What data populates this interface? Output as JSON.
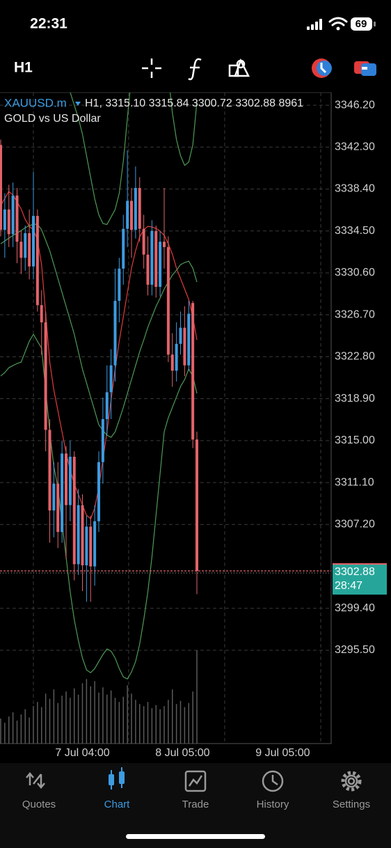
{
  "status_bar": {
    "time": "22:31",
    "battery": "69"
  },
  "toolbar": {
    "timeframe": "H1"
  },
  "chart_data": {
    "type": "candlestick",
    "symbol": "XAUUSD.m",
    "info": "H1, 3315.10 3315.84 3300.72 3302.88 8961",
    "description": "GOLD vs US Dollar",
    "up_color": "#3d9be0",
    "down_color": "#e2636a",
    "volume_color": "#5a5a5a",
    "grid": true,
    "xlim": [
      -0.17,
      80.85
    ],
    "ylim": [
      3286.82,
      3347.37
    ],
    "yticks": [
      {
        "value": 3346.2,
        "label": "3346.20"
      },
      {
        "value": 3342.3,
        "label": "3342.30"
      },
      {
        "value": 3338.4,
        "label": "3338.40"
      },
      {
        "value": 3334.5,
        "label": "3334.50"
      },
      {
        "value": 3330.6,
        "label": "3330.60"
      },
      {
        "value": 3326.7,
        "label": "3326.70"
      },
      {
        "value": 3322.8,
        "label": "3322.80"
      },
      {
        "value": 3318.9,
        "label": "3318.90"
      },
      {
        "value": 3315.0,
        "label": "3315.00"
      },
      {
        "value": 3311.1,
        "label": "3311.10"
      },
      {
        "value": 3307.2,
        "label": "3307.20"
      },
      {
        "value": 3299.4,
        "label": "3299.40"
      },
      {
        "value": 3295.5,
        "label": "3295.50"
      }
    ],
    "xticks": [
      {
        "value": 20,
        "label": "7 Jul 04:00"
      },
      {
        "value": 44.5,
        "label": "8 Jul 05:00"
      },
      {
        "value": 69,
        "label": "9 Jul 05:00"
      }
    ],
    "xgrid": [
      8,
      31.3,
      54.8,
      78.3
    ],
    "open": [
      3342.5,
      3334.6,
      3336.5,
      3334.2,
      3337.8,
      3333.5,
      3332,
      3334.3,
      3331.2,
      3335.9,
      3327.6,
      3326,
      3316,
      3308.5,
      3311,
      3306.5,
      3313.8,
      3309,
      3313.5,
      3303.5,
      3309,
      3303.4,
      3307,
      3303.3,
      3307.5,
      3313,
      3317,
      3319.5,
      3322,
      3328,
      3331,
      3334.7,
      3337.3,
      3334.6,
      3338.5,
      3334.7,
      3332.3,
      3329.5,
      3334.5,
      3329.3,
      3333.5,
      3333,
      3323,
      3321.5,
      3324,
      3325.5,
      3322,
      3327.8,
      3315.1
    ],
    "high": [
      3343,
      3338,
      3338.8,
      3339,
      3338.5,
      3334.5,
      3335,
      3336.5,
      3340,
      3336.5,
      3329,
      3327,
      3317,
      3313,
      3313,
      3315,
      3314.5,
      3315,
      3314,
      3310.5,
      3310,
      3308,
      3308,
      3309,
      3314,
      3319,
      3322,
      3323.5,
      3331,
      3332,
      3336,
      3342,
      3338.5,
      3340.5,
      3339.5,
      3336,
      3334,
      3335.5,
      3335,
      3334.5,
      3338.5,
      3334,
      3325,
      3326,
      3327,
      3327.5,
      3328,
      3328,
      3315.84
    ],
    "low": [
      3334,
      3332,
      3333,
      3333,
      3331.5,
      3330.5,
      3330.8,
      3330,
      3330,
      3327,
      3323,
      3314,
      3305.5,
      3306,
      3305,
      3305.5,
      3304,
      3307.5,
      3302,
      3302.5,
      3301,
      3300,
      3300,
      3301.5,
      3306.5,
      3311,
      3315.5,
      3317,
      3320.5,
      3326,
      3329.5,
      3333,
      3332,
      3333.8,
      3333.5,
      3331,
      3328.5,
      3328.5,
      3328.3,
      3328.4,
      3331,
      3322.3,
      3320,
      3320.5,
      3323,
      3321,
      3321.5,
      3314.3,
      3300.72
    ],
    "close": [
      3334.6,
      3336.5,
      3334.2,
      3337.8,
      3333.5,
      3332,
      3334.3,
      3331.2,
      3335.9,
      3327.6,
      3326,
      3316,
      3308.5,
      3311,
      3306.5,
      3313.8,
      3309,
      3313.5,
      3303.5,
      3309,
      3303.4,
      3307,
      3303.3,
      3307.5,
      3313,
      3317,
      3319.5,
      3322,
      3328,
      3331,
      3334.7,
      3337.3,
      3334.6,
      3338.5,
      3334.7,
      3332.3,
      3329.5,
      3334.5,
      3329.3,
      3333.5,
      3333,
      3323,
      3321.5,
      3324,
      3325.5,
      3322,
      3326.8,
      3315.1,
      3302.88
    ],
    "volume": [
      2400,
      2000,
      2600,
      3000,
      2200,
      2800,
      3300,
      2500,
      3600,
      4000,
      3500,
      4800,
      4300,
      5200,
      3900,
      4600,
      5000,
      4400,
      5300,
      4700,
      5800,
      6200,
      5500,
      6000,
      4900,
      5400,
      4700,
      5100,
      4400,
      4000,
      4500,
      5600,
      4800,
      4200,
      3800,
      3600,
      4000,
      3400,
      3700,
      3300,
      3600,
      4200,
      5200,
      3800,
      4100,
      3500,
      3900,
      5000,
      8961
    ],
    "indicators": [
      {
        "color": "#e23b3b",
        "values": [
          3336.87,
          3337.52,
          3338.17,
          3337.85,
          3337.2,
          3336.55,
          3335.58,
          3334.93,
          3334.61,
          3333.64,
          3331.37,
          3326.83,
          3322.3,
          3319.71,
          3317.77,
          3315.82,
          3313.88,
          3312.26,
          3310.97,
          3310,
          3309.02,
          3308.05,
          3307.73,
          3308.7,
          3310.64,
          3313.23,
          3315.82,
          3318.74,
          3321.65,
          3324.24,
          3326.51,
          3328.78,
          3331.04,
          3332.66,
          3333.96,
          3334.61,
          3334.93,
          3334.87,
          3334.74,
          3334.48,
          3334.09,
          3333.31,
          3332.34,
          3331.04,
          3330.07,
          3329.1,
          3328.13,
          3326.51,
          3324.37
        ]
      },
      {
        "color": "#4f9a55",
        "values": [
          3347.8,
          3348.5,
          3349.2,
          3350,
          3350.5,
          3351,
          3351.2,
          3351.3,
          3351.3,
          3351.2,
          3351,
          3350.5,
          3350,
          3349.8,
          3349.5,
          3349,
          3348.3,
          3347.4,
          3346.2,
          3345,
          3343.5,
          3341.5,
          3339.5,
          3337.5,
          3336,
          3335.2,
          3335.1,
          3335.8,
          3336.5,
          3338,
          3341,
          3345,
          3349,
          3352,
          3354,
          3355,
          3355.5,
          3355.5,
          3355,
          3354,
          3352,
          3349,
          3345.5,
          3343,
          3341.5,
          3340.6,
          3340.9,
          3342.5,
          3346.5
        ]
      },
      {
        "color": "#4f9a55",
        "values": [
          3333.31,
          3333.57,
          3333.83,
          3334.09,
          3334.28,
          3334.54,
          3334.8,
          3334.99,
          3335.12,
          3335.12,
          3334.61,
          3333.64,
          3332.66,
          3331.37,
          3330.07,
          3328.78,
          3327.48,
          3326.19,
          3324.89,
          3323.27,
          3321.65,
          3320.36,
          3319.06,
          3317.77,
          3316.47,
          3315.95,
          3315.5,
          3315.31,
          3315.82,
          3316.92,
          3318.09,
          3319.39,
          3320.68,
          3321.98,
          3323.27,
          3324.37,
          3325.54,
          3326.51,
          3327.48,
          3328.26,
          3329.1,
          3329.75,
          3330.4,
          3330.85,
          3331.37,
          3331.56,
          3331.69,
          3331.04,
          3329.75
        ]
      },
      {
        "color": "#4f9a55",
        "values": [
          3321.01,
          3321.33,
          3321.78,
          3321.98,
          3322.17,
          3322.3,
          3323.27,
          3324.24,
          3324.89,
          3324.24,
          3323.6,
          3319.71,
          3315.82,
          3312.59,
          3310.64,
          3307.4,
          3304.17,
          3300.93,
          3298.34,
          3296.4,
          3294.78,
          3293.67,
          3293.41,
          3293.8,
          3294.45,
          3295.1,
          3295.62,
          3295.42,
          3294.78,
          3293.8,
          3293.02,
          3292.83,
          3293.48,
          3294.45,
          3296.07,
          3298.34,
          3300.93,
          3304.17,
          3308.05,
          3311.94,
          3315.82,
          3317.12,
          3318.09,
          3319.06,
          3320.03,
          3320.68,
          3321.65,
          3321.01,
          3319.39
        ]
      }
    ],
    "current_price": {
      "value": 3302.88,
      "label": "3302.88",
      "color": "#e2636a",
      "box_color": "#26a69a"
    },
    "countdown": "28:47"
  },
  "tab_bar": {
    "tabs": [
      "Quotes",
      "Chart",
      "Trade",
      "History",
      "Settings"
    ],
    "active": 1,
    "active_color": "#3d9be0",
    "color": "#9a9a9a"
  }
}
